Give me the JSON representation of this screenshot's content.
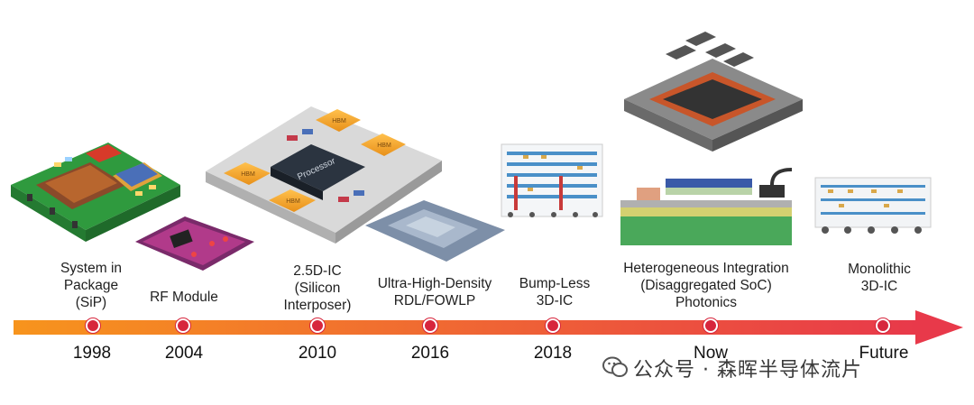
{
  "timeline": [
    {
      "label": "System in\nPackage\n(SiP)",
      "year": "1998"
    },
    {
      "label": "RF Module",
      "year": "2004"
    },
    {
      "label": "2.5D-IC\n(Silicon\nInterposer)",
      "year": "2010"
    },
    {
      "label": "Ultra-High-Density\nRDL/FOWLP",
      "year": "2016"
    },
    {
      "label": "Bump-Less\n3D-IC",
      "year": "2018"
    },
    {
      "label": "Heterogeneous Integration\n(Disaggregated SoC)\nPhotonics",
      "year": "Now"
    },
    {
      "label": "Monolithic\n3D-IC",
      "year": "Future"
    }
  ],
  "chip_labels": {
    "processor": "Processor",
    "hbm": "HBM"
  },
  "watermark": "公众号 · 森晖半导体流片",
  "colors": {
    "arrow_start": "#f7941d",
    "arrow_end": "#e8394a",
    "dot": "#d7263d",
    "pcb_green": "#3aa84a",
    "hbm_orange": "#f5a623"
  }
}
